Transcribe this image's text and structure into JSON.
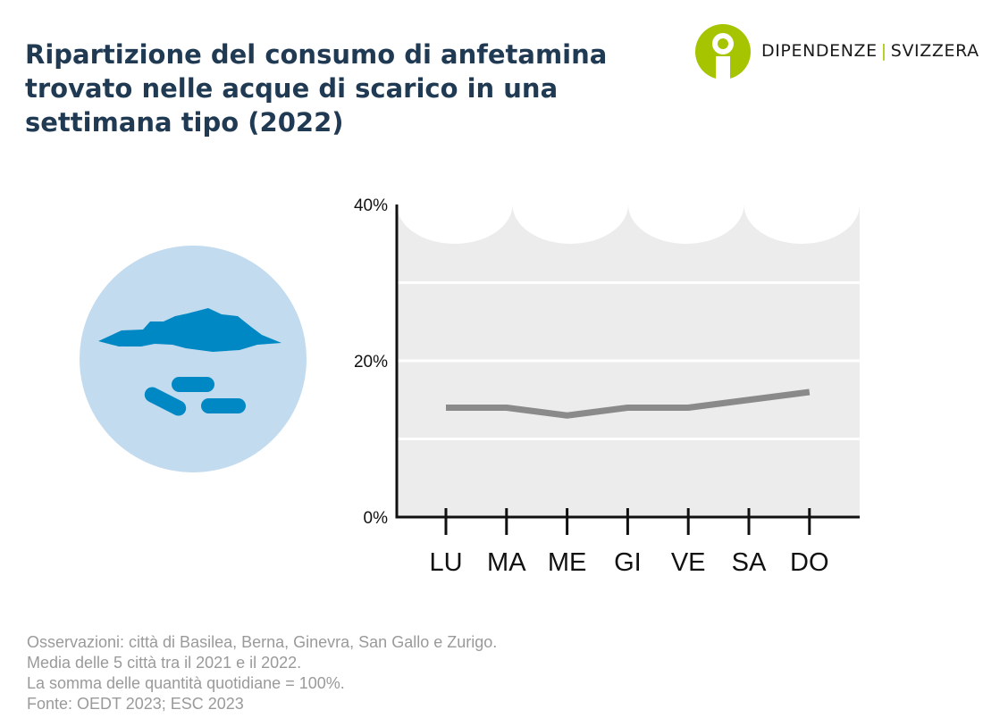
{
  "title_lines": [
    "Ripartizione del consumo di anfetamina",
    "trovato nelle acque di scarico in una",
    "settimana tipo (2022)"
  ],
  "brand": {
    "name_left": "DIPENDENZE",
    "separator": "|",
    "name_right": "SVIZZERA",
    "logo_icon": "person-info-icon",
    "accent_color": "#a6c400"
  },
  "illustration": {
    "icon": "pills-and-powder-icon",
    "circle_color": "#c3dbef",
    "shape_color": "#0088c4"
  },
  "chart_data": {
    "type": "line",
    "categories": [
      "LU",
      "MA",
      "ME",
      "GI",
      "VE",
      "SA",
      "DO"
    ],
    "series": [
      {
        "values": [
          14,
          14,
          13,
          14,
          14,
          15,
          16
        ]
      }
    ],
    "y_ticks": [
      0,
      20,
      40
    ],
    "y_tick_labels": [
      "0%",
      "20%",
      "40%"
    ],
    "ylim": [
      0,
      40
    ],
    "grid": true,
    "line_color": "#8a8a8a",
    "background_color": "#ececec"
  },
  "notes": [
    "Osservazioni: città di Basilea, Berna, Ginevra, San Gallo e Zurigo.",
    "Media delle 5 città tra il 2021 e il 2022.",
    "La somma delle quantità quotidiane = 100%.",
    "Fonte: OEDT 2023; ESC 2023"
  ]
}
